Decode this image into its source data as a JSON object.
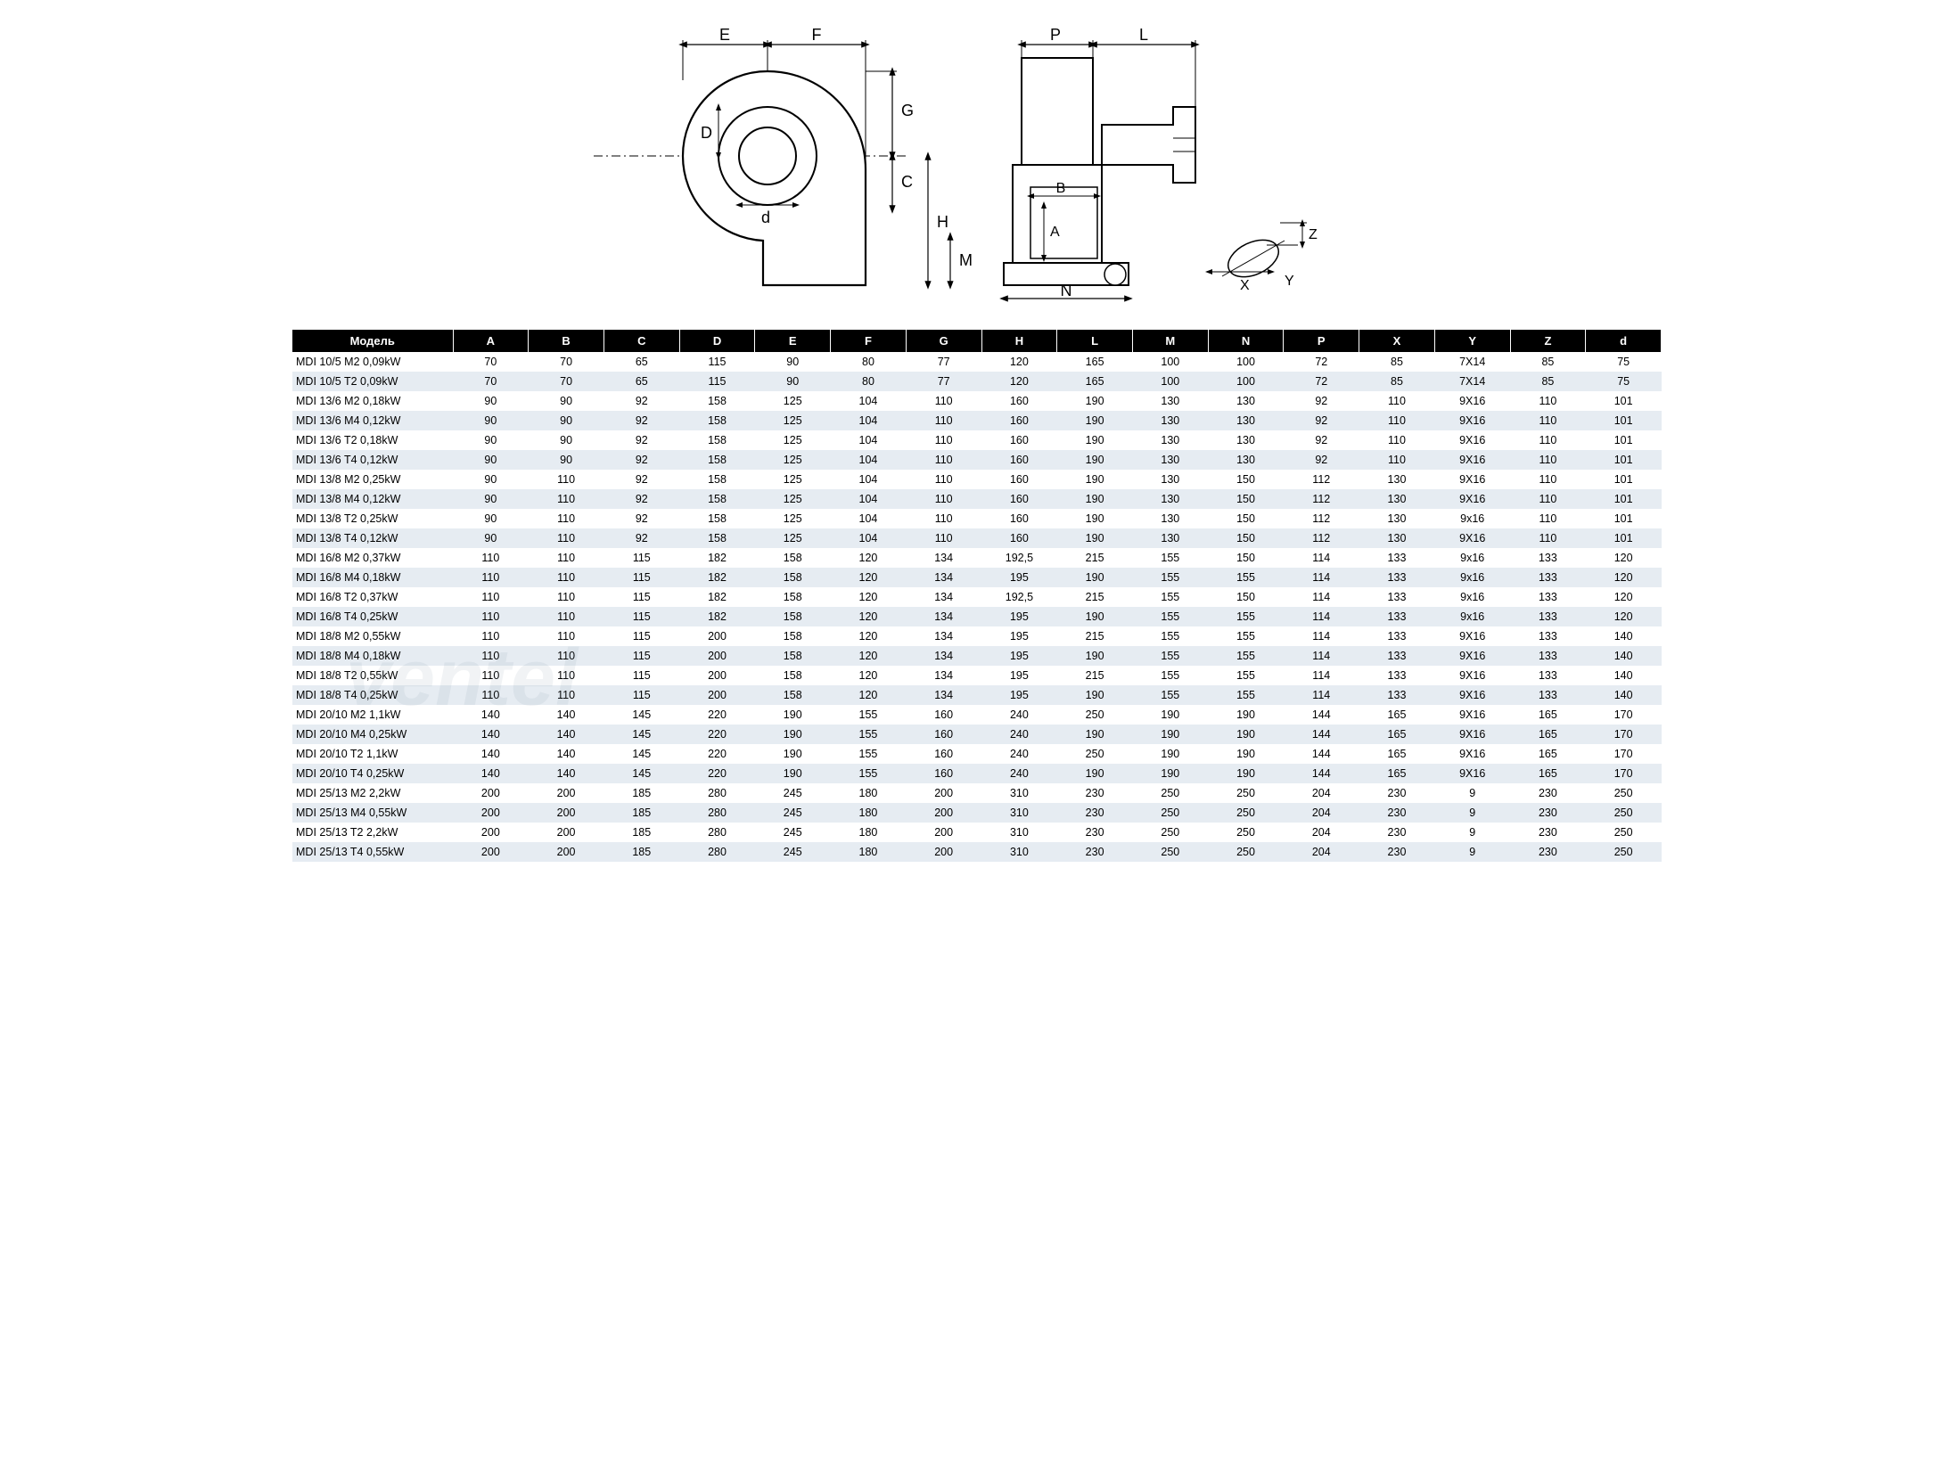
{
  "diagram": {
    "stroke": "#000000",
    "fill": "#ffffff",
    "thin": 1.5,
    "thick": 2.5,
    "labels": [
      "A",
      "B",
      "C",
      "D",
      "E",
      "F",
      "G",
      "H",
      "L",
      "M",
      "N",
      "P",
      "X",
      "Y",
      "Z",
      "d"
    ],
    "font_size": 18
  },
  "watermark": {
    "text": "ventel",
    "color": "rgba(120,140,160,0.10)"
  },
  "table": {
    "header_bg": "#000000",
    "header_fg": "#ffffff",
    "row_alt_bg": "#e6ecf2",
    "row_bg": "#ffffff",
    "font_size": 12.5,
    "columns": [
      "Модель",
      "A",
      "B",
      "C",
      "D",
      "E",
      "F",
      "G",
      "H",
      "L",
      "M",
      "N",
      "P",
      "X",
      "Y",
      "Z",
      "d"
    ],
    "rows": [
      [
        "MDI 10/5 M2 0,09kW",
        "70",
        "70",
        "65",
        "115",
        "90",
        "80",
        "77",
        "120",
        "165",
        "100",
        "100",
        "72",
        "85",
        "7X14",
        "85",
        "75"
      ],
      [
        "MDI 10/5 T2 0,09kW",
        "70",
        "70",
        "65",
        "115",
        "90",
        "80",
        "77",
        "120",
        "165",
        "100",
        "100",
        "72",
        "85",
        "7X14",
        "85",
        "75"
      ],
      [
        "MDI 13/6 M2 0,18kW",
        "90",
        "90",
        "92",
        "158",
        "125",
        "104",
        "110",
        "160",
        "190",
        "130",
        "130",
        "92",
        "110",
        "9X16",
        "110",
        "101"
      ],
      [
        "MDI 13/6 M4 0,12kW",
        "90",
        "90",
        "92",
        "158",
        "125",
        "104",
        "110",
        "160",
        "190",
        "130",
        "130",
        "92",
        "110",
        "9X16",
        "110",
        "101"
      ],
      [
        "MDI 13/6 T2 0,18kW",
        "90",
        "90",
        "92",
        "158",
        "125",
        "104",
        "110",
        "160",
        "190",
        "130",
        "130",
        "92",
        "110",
        "9X16",
        "110",
        "101"
      ],
      [
        "MDI 13/6 T4 0,12kW",
        "90",
        "90",
        "92",
        "158",
        "125",
        "104",
        "110",
        "160",
        "190",
        "130",
        "130",
        "92",
        "110",
        "9X16",
        "110",
        "101"
      ],
      [
        "MDI 13/8 M2 0,25kW",
        "90",
        "110",
        "92",
        "158",
        "125",
        "104",
        "110",
        "160",
        "190",
        "130",
        "150",
        "112",
        "130",
        "9X16",
        "110",
        "101"
      ],
      [
        "MDI 13/8 M4 0,12kW",
        "90",
        "110",
        "92",
        "158",
        "125",
        "104",
        "110",
        "160",
        "190",
        "130",
        "150",
        "112",
        "130",
        "9X16",
        "110",
        "101"
      ],
      [
        "MDI 13/8 T2 0,25kW",
        "90",
        "110",
        "92",
        "158",
        "125",
        "104",
        "110",
        "160",
        "190",
        "130",
        "150",
        "112",
        "130",
        "9x16",
        "110",
        "101"
      ],
      [
        "MDI 13/8 T4 0,12kW",
        "90",
        "110",
        "92",
        "158",
        "125",
        "104",
        "110",
        "160",
        "190",
        "130",
        "150",
        "112",
        "130",
        "9X16",
        "110",
        "101"
      ],
      [
        "MDI 16/8 M2 0,37kW",
        "110",
        "110",
        "115",
        "182",
        "158",
        "120",
        "134",
        "192,5",
        "215",
        "155",
        "150",
        "114",
        "133",
        "9x16",
        "133",
        "120"
      ],
      [
        "MDI 16/8 M4 0,18kW",
        "110",
        "110",
        "115",
        "182",
        "158",
        "120",
        "134",
        "195",
        "190",
        "155",
        "155",
        "114",
        "133",
        "9x16",
        "133",
        "120"
      ],
      [
        "MDI 16/8 T2 0,37kW",
        "110",
        "110",
        "115",
        "182",
        "158",
        "120",
        "134",
        "192,5",
        "215",
        "155",
        "150",
        "114",
        "133",
        "9x16",
        "133",
        "120"
      ],
      [
        "MDI 16/8 T4 0,25kW",
        "110",
        "110",
        "115",
        "182",
        "158",
        "120",
        "134",
        "195",
        "190",
        "155",
        "155",
        "114",
        "133",
        "9x16",
        "133",
        "120"
      ],
      [
        "MDI 18/8 M2 0,55kW",
        "110",
        "110",
        "115",
        "200",
        "158",
        "120",
        "134",
        "195",
        "215",
        "155",
        "155",
        "114",
        "133",
        "9X16",
        "133",
        "140"
      ],
      [
        "MDI 18/8 M4 0,18kW",
        "110",
        "110",
        "115",
        "200",
        "158",
        "120",
        "134",
        "195",
        "190",
        "155",
        "155",
        "114",
        "133",
        "9X16",
        "133",
        "140"
      ],
      [
        "MDI 18/8 T2 0,55kW",
        "110",
        "110",
        "115",
        "200",
        "158",
        "120",
        "134",
        "195",
        "215",
        "155",
        "155",
        "114",
        "133",
        "9X16",
        "133",
        "140"
      ],
      [
        "MDI 18/8 T4 0,25kW",
        "110",
        "110",
        "115",
        "200",
        "158",
        "120",
        "134",
        "195",
        "190",
        "155",
        "155",
        "114",
        "133",
        "9X16",
        "133",
        "140"
      ],
      [
        "MDI 20/10 M2 1,1kW",
        "140",
        "140",
        "145",
        "220",
        "190",
        "155",
        "160",
        "240",
        "250",
        "190",
        "190",
        "144",
        "165",
        "9X16",
        "165",
        "170"
      ],
      [
        "MDI 20/10 M4 0,25kW",
        "140",
        "140",
        "145",
        "220",
        "190",
        "155",
        "160",
        "240",
        "190",
        "190",
        "190",
        "144",
        "165",
        "9X16",
        "165",
        "170"
      ],
      [
        "MDI 20/10 T2 1,1kW",
        "140",
        "140",
        "145",
        "220",
        "190",
        "155",
        "160",
        "240",
        "250",
        "190",
        "190",
        "144",
        "165",
        "9X16",
        "165",
        "170"
      ],
      [
        "MDI 20/10 T4 0,25kW",
        "140",
        "140",
        "145",
        "220",
        "190",
        "155",
        "160",
        "240",
        "190",
        "190",
        "190",
        "144",
        "165",
        "9X16",
        "165",
        "170"
      ],
      [
        "MDI 25/13 M2 2,2kW",
        "200",
        "200",
        "185",
        "280",
        "245",
        "180",
        "200",
        "310",
        "230",
        "250",
        "250",
        "204",
        "230",
        "9",
        "230",
        "250"
      ],
      [
        "MDI 25/13 M4 0,55kW",
        "200",
        "200",
        "185",
        "280",
        "245",
        "180",
        "200",
        "310",
        "230",
        "250",
        "250",
        "204",
        "230",
        "9",
        "230",
        "250"
      ],
      [
        "MDI 25/13 T2 2,2kW",
        "200",
        "200",
        "185",
        "280",
        "245",
        "180",
        "200",
        "310",
        "230",
        "250",
        "250",
        "204",
        "230",
        "9",
        "230",
        "250"
      ],
      [
        "MDI 25/13 T4 0,55kW",
        "200",
        "200",
        "185",
        "280",
        "245",
        "180",
        "200",
        "310",
        "230",
        "250",
        "250",
        "204",
        "230",
        "9",
        "230",
        "250"
      ]
    ]
  }
}
